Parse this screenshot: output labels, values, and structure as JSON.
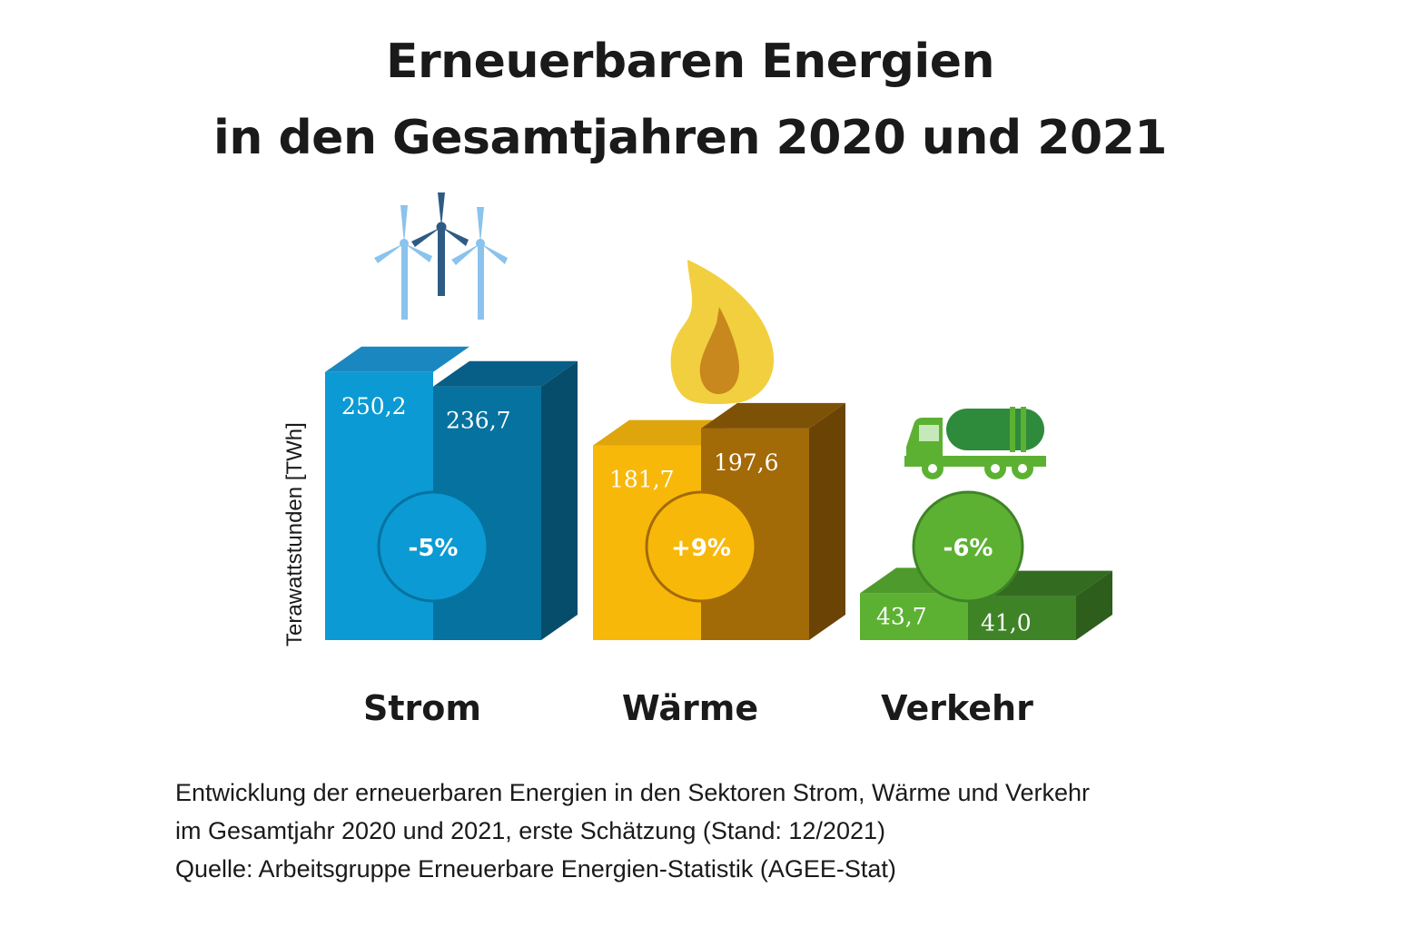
{
  "title": {
    "line1": "Erneuerbaren Energien",
    "line2": "in den Gesamtjahren 2020 und 2021"
  },
  "chart_data": {
    "type": "bar",
    "title": "Erneuerbaren Energien in den Gesamtjahren 2020 und 2021",
    "ylabel": "Terawattstunden [TWh]",
    "xlabel": "",
    "ylim": [
      0,
      300
    ],
    "grid": false,
    "categories": [
      "Strom",
      "Wärme",
      "Verkehr"
    ],
    "series": [
      {
        "values": [
          250.2,
          181.7,
          43.7
        ],
        "labels": [
          "250,2",
          "181,7",
          "43,7"
        ]
      },
      {
        "values": [
          236.7,
          197.6,
          41.0
        ],
        "labels": [
          "236,7",
          "197,6",
          "41,0"
        ]
      }
    ],
    "changes": [
      "-5%",
      "+9%",
      "-6%"
    ],
    "icons": [
      "wind-turbines-icon",
      "flame-icon",
      "tanker-truck-icon"
    ],
    "colors": {
      "Strom": {
        "first": "#0b9ad3",
        "second": "#06729f",
        "side": "#064d6c",
        "top1": "#1a87c0",
        "top2": "#075e86"
      },
      "Wärme": {
        "first": "#f8b80a",
        "second": "#a36a08",
        "side": "#6b4405",
        "top1": "#dea50c",
        "top2": "#7e5206"
      },
      "Verkehr": {
        "first": "#5cb133",
        "second": "#3f8327",
        "side": "#2d5e1b",
        "top1": "#4f9a2c",
        "top2": "#336b20"
      }
    }
  },
  "caption": {
    "line1": "Entwicklung der erneuerbaren Energien in den Sektoren Strom, Wärme und Verkehr",
    "line2": "im Gesamtjahr 2020 und 2021, erste Schätzung (Stand: 12/2021)",
    "line3": "Quelle: Arbeitsgruppe Erneuerbare Energien-Statistik (AGEE-Stat)"
  }
}
